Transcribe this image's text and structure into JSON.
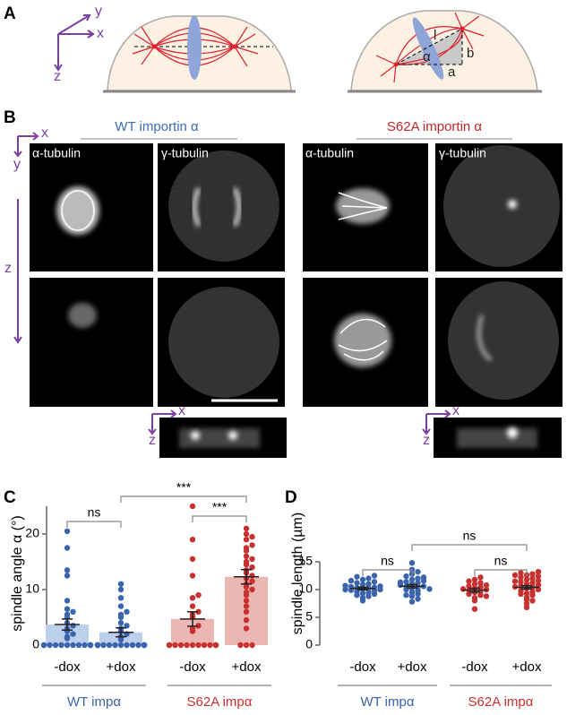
{
  "panel_labels": [
    "A",
    "B",
    "C",
    "D"
  ],
  "schematic": {
    "axes": [
      "y",
      "x",
      "z"
    ],
    "geometry_labels": [
      "l",
      "α",
      "b",
      "a"
    ]
  },
  "micrographs": {
    "conditions": [
      "WT importin α",
      "S62A importin α"
    ],
    "stains": [
      "α-tubulin",
      "γ-tubulin",
      "α-tubulin",
      "γ-tubulin"
    ],
    "xy_axes": [
      "x",
      "y"
    ],
    "z_axis": "z",
    "xz_axes": [
      "x",
      "z",
      "x",
      "z"
    ]
  },
  "chart_data": [
    {
      "type": "bar",
      "ylabel": "spindle angle α (°)",
      "categories": [
        "-dox",
        "+dox"
      ],
      "ylim": [
        0,
        25
      ],
      "yticks": [
        0,
        10,
        20
      ],
      "annotations": [
        "ns",
        "***",
        "***"
      ],
      "series": [
        {
          "name": "WT impα",
          "color": "#3b64ad",
          "bar_color": "#bcd0ec",
          "values": [
            3.7,
            2.3
          ],
          "errors": [
            1.0,
            0.8
          ],
          "points": [
            [
              0,
              0,
              0,
              0,
              0,
              0,
              0,
              0,
              0,
              0,
              0,
              0,
              0,
              0,
              1.2,
              1.5,
              2.0,
              2.5,
              3.0,
              3.5,
              4.0,
              5.0,
              5.5,
              6.0,
              6.5,
              8.0,
              12.5,
              13.5,
              17.5,
              20.5
            ],
            [
              0,
              0,
              0,
              0,
              0,
              0,
              0,
              0,
              0,
              0,
              0,
              0,
              0,
              0,
              0,
              0,
              1,
              1.5,
              2,
              2.5,
              3,
              3.5,
              4,
              5,
              5.5,
              6,
              7,
              8.5,
              10,
              11
            ]
          ]
        },
        {
          "name": "S62A impα",
          "color": "#c8312f",
          "bar_color": "#ecb6b3",
          "values": [
            4.7,
            12.3
          ],
          "errors": [
            1.3,
            1.3
          ],
          "points": [
            [
              0,
              0,
              0,
              0,
              0,
              0,
              0,
              0,
              0,
              0,
              0,
              0,
              2.5,
              3,
              3.5,
              5,
              5.5,
              6,
              7,
              8.5,
              9,
              12.5,
              15.5,
              19,
              25
            ],
            [
              0,
              0,
              0,
              3,
              4.5,
              6,
              7,
              8,
              9,
              9.5,
              10,
              10.5,
              11,
              11.5,
              12,
              12.5,
              13,
              13.5,
              14,
              14.5,
              15,
              15.5,
              16,
              17,
              17.5,
              18,
              19,
              19.5,
              20,
              21
            ]
          ]
        }
      ]
    },
    {
      "type": "dot",
      "ylabel": "spindle length (µm)",
      "categories": [
        "-dox",
        "+dox"
      ],
      "ylim": [
        0,
        15
      ],
      "yticks": [
        0,
        5,
        10,
        15
      ],
      "annotations": [
        "ns",
        "ns",
        "ns"
      ],
      "series": [
        {
          "name": "WT impα",
          "color": "#3b64ad",
          "values": [
            10.2,
            10.6
          ],
          "errors": [
            0.25,
            0.3
          ],
          "points": [
            [
              8.5,
              8.8,
              9.0,
              9.2,
              9.3,
              9.5,
              9.6,
              9.8,
              9.9,
              10.0,
              10.0,
              10.1,
              10.2,
              10.3,
              10.4,
              10.5,
              10.6,
              10.7,
              10.9,
              11.0,
              11.2,
              11.4,
              11.6,
              11.8,
              12.0,
              12.3,
              12.5,
              8.0
            ],
            [
              7.8,
              8.3,
              8.8,
              9.2,
              9.5,
              9.8,
              10.0,
              10.2,
              10.4,
              10.5,
              10.6,
              10.8,
              11.0,
              11.2,
              11.4,
              11.6,
              11.8,
              12.0,
              12.4,
              12.8,
              13.2,
              13.6,
              14.8,
              9.0,
              10.1,
              11.3,
              12.2
            ]
          ]
        },
        {
          "name": "S62A impα",
          "color": "#c8312f",
          "values": [
            9.9,
            10.4
          ],
          "errors": [
            0.35,
            0.3
          ],
          "points": [
            [
              6.5,
              8.0,
              8.5,
              9.0,
              9.2,
              9.5,
              9.7,
              9.9,
              10.0,
              10.2,
              10.4,
              10.6,
              10.8,
              11.0,
              11.2,
              11.5,
              11.8,
              12.2,
              8.8,
              10.1
            ],
            [
              6.8,
              7.5,
              8.2,
              8.6,
              9.0,
              9.3,
              9.6,
              9.8,
              10.0,
              10.2,
              10.4,
              10.6,
              10.8,
              11.0,
              11.2,
              11.4,
              11.6,
              11.8,
              12.0,
              12.2,
              12.4,
              12.6,
              12.8,
              13.0,
              13.2,
              8.0,
              9.2,
              10.5,
              11.5,
              12.6
            ]
          ]
        }
      ]
    }
  ]
}
